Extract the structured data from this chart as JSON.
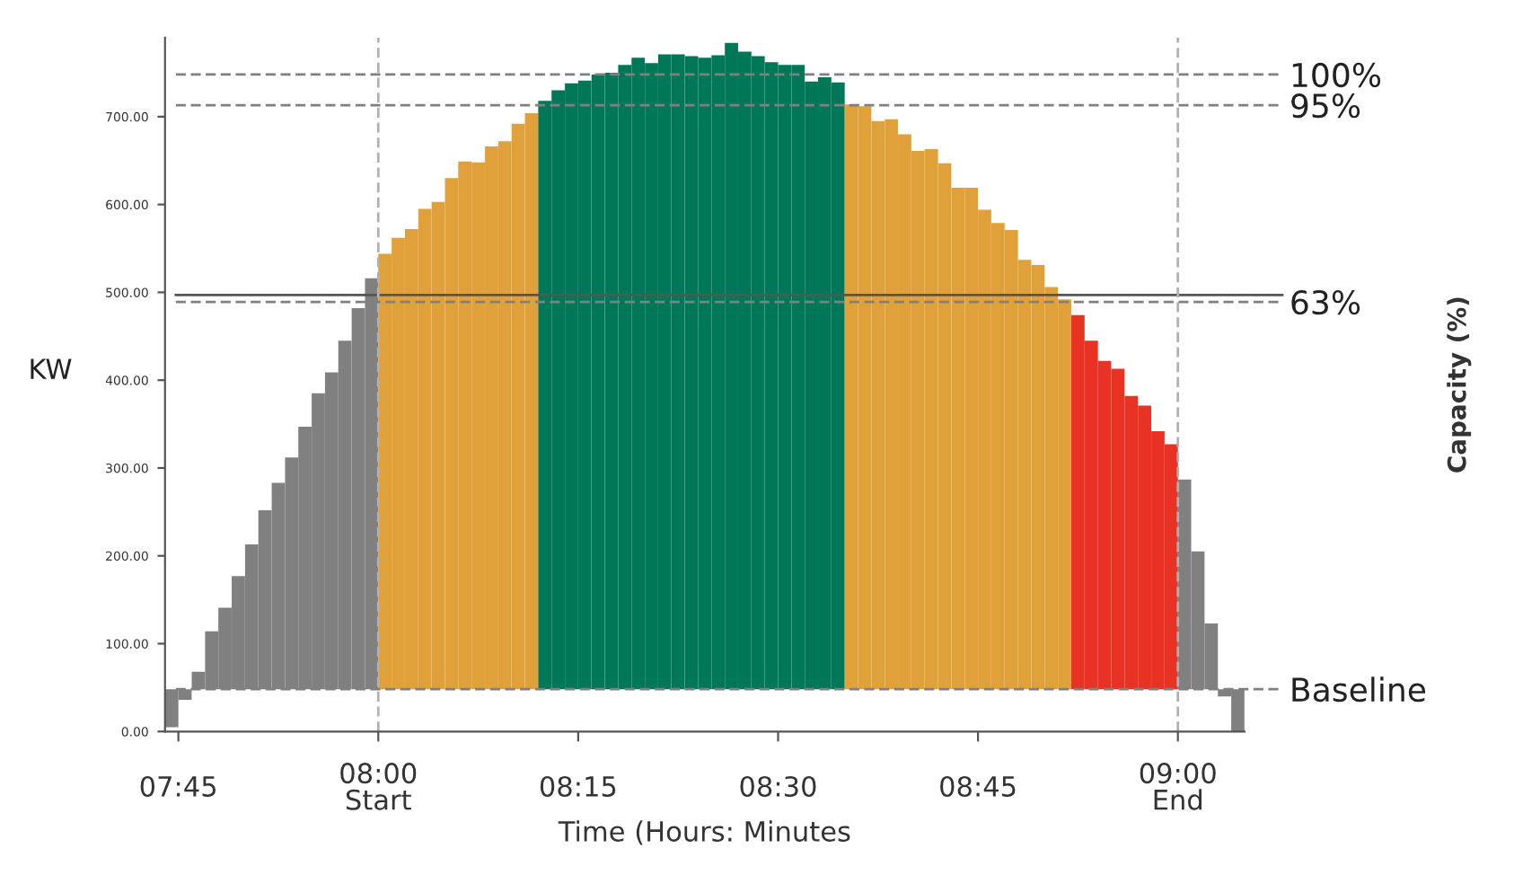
{
  "chart_data": {
    "type": "bar",
    "xlabel": "Time (Hours: Minutes",
    "ylabel": "KW",
    "y2label": "Capacity (%)",
    "x": [
      7.7417,
      7.7583,
      7.775,
      7.7917,
      7.8083,
      7.825,
      7.8417,
      7.8583,
      7.875,
      7.8917,
      7.9083,
      7.925,
      7.9417,
      7.9583,
      7.975,
      7.9917,
      8.0083,
      8.025,
      8.0417,
      8.0583,
      8.075,
      8.0917,
      8.1083,
      8.125,
      8.1417,
      8.1583,
      8.175,
      8.1917,
      8.2083,
      8.225,
      8.2417,
      8.2583,
      8.275,
      8.2917,
      8.3083,
      8.325,
      8.3417,
      8.3583,
      8.375,
      8.3917,
      8.4083,
      8.425,
      8.4417,
      8.4583,
      8.475,
      8.4917,
      8.5083,
      8.525,
      8.5417,
      8.5583,
      8.575,
      8.5917,
      8.6083,
      8.625,
      8.6417,
      8.6583,
      8.675,
      8.6917,
      8.7083,
      8.725,
      8.7417,
      8.7583,
      8.775,
      8.7917,
      8.8083,
      8.825,
      8.8417,
      8.8583,
      8.875,
      8.8917,
      8.9083,
      8.925,
      8.9417,
      8.9583,
      8.975,
      8.9917,
      9.0083,
      9.025,
      9.0417,
      9.0583,
      9.075
    ],
    "values": [
      -43,
      -12,
      20,
      66,
      93,
      129,
      165,
      204,
      235,
      264,
      299,
      337,
      361,
      397,
      434,
      468,
      496,
      514,
      524,
      547,
      555,
      582,
      601,
      600,
      618,
      624,
      644,
      656,
      670,
      682,
      690,
      693,
      700,
      702,
      711,
      719,
      713,
      723,
      723,
      721,
      719,
      722,
      736,
      726,
      721,
      714,
      711,
      711,
      692,
      697,
      691,
      666,
      664,
      647,
      649,
      632,
      613,
      615,
      599,
      571,
      571,
      546,
      531,
      523,
      489,
      483,
      458,
      444,
      426,
      397,
      374,
      365,
      334,
      323,
      294,
      279,
      239,
      157,
      75,
      -8,
      -48
    ],
    "base": [
      48,
      48,
      48,
      48,
      48,
      48,
      48,
      48,
      48,
      48,
      48,
      48,
      48,
      48,
      48,
      48,
      48,
      48,
      48,
      48,
      48,
      48,
      48,
      48,
      48,
      48,
      48,
      48,
      48,
      48,
      48,
      48,
      48,
      48,
      48,
      48,
      48,
      48,
      48,
      48,
      48,
      48,
      48,
      48,
      48,
      48,
      48,
      48,
      48,
      48,
      48,
      48,
      48,
      48,
      48,
      48,
      48,
      48,
      48,
      48,
      48,
      48,
      48,
      48,
      48,
      48,
      48,
      48,
      48,
      48,
      48,
      48,
      48,
      48,
      48,
      48,
      48,
      48,
      48,
      48,
      48
    ],
    "colors": [
      "#808080",
      "#808080",
      "#808080",
      "#808080",
      "#808080",
      "#808080",
      "#808080",
      "#808080",
      "#808080",
      "#808080",
      "#808080",
      "#808080",
      "#808080",
      "#808080",
      "#808080",
      "#808080",
      "#e0a03a",
      "#e0a03a",
      "#e0a03a",
      "#e0a03a",
      "#e0a03a",
      "#e0a03a",
      "#e0a03a",
      "#e0a03a",
      "#e0a03a",
      "#e0a03a",
      "#e0a03a",
      "#e0a03a",
      "#007858",
      "#007858",
      "#007858",
      "#007858",
      "#007858",
      "#007858",
      "#007858",
      "#007858",
      "#007858",
      "#007858",
      "#007858",
      "#007858",
      "#007858",
      "#007858",
      "#007858",
      "#007858",
      "#007858",
      "#007858",
      "#007858",
      "#007858",
      "#007858",
      "#007858",
      "#007858",
      "#e0a03a",
      "#e0a03a",
      "#e0a03a",
      "#e0a03a",
      "#e0a03a",
      "#e0a03a",
      "#e0a03a",
      "#e0a03a",
      "#e0a03a",
      "#e0a03a",
      "#e0a03a",
      "#e0a03a",
      "#e0a03a",
      "#e0a03a",
      "#e0a03a",
      "#e0a03a",
      "#e0a03a",
      "#e83224",
      "#e83224",
      "#e83224",
      "#e83224",
      "#e83224",
      "#e83224",
      "#e83224",
      "#e83224",
      "#808080",
      "#808080",
      "#808080",
      "#808080",
      "#808080"
    ],
    "xlim": [
      7.7333,
      9.0833
    ],
    "xticks": [
      {
        "value": 7.75,
        "label": "07:45"
      },
      {
        "value": 8,
        "label": "08:00\nStart"
      },
      {
        "value": 8.25,
        "label": "08:15"
      },
      {
        "value": 8.5,
        "label": "08:30"
      },
      {
        "value": 8.75,
        "label": "08:45"
      },
      {
        "value": 9,
        "label": "09:00\nEnd"
      }
    ],
    "ylim": [
      0,
      790
    ],
    "yticks": [
      {
        "value": 0,
        "label": "0.00"
      },
      {
        "value": 100,
        "label": "100.00"
      },
      {
        "value": 200,
        "label": "200.00"
      },
      {
        "value": 300,
        "label": "300.00"
      },
      {
        "value": 400,
        "label": "400.00"
      },
      {
        "value": 500,
        "label": "500.00"
      },
      {
        "value": 600,
        "label": "600.00"
      },
      {
        "value": 700,
        "label": "700.00"
      }
    ],
    "y2lim": [
      -6.9,
      106
    ],
    "y2ticks": [
      {
        "value": 100,
        "label": "100%"
      },
      {
        "value": 95,
        "label": "95%"
      },
      {
        "value": 63,
        "label": "63%"
      },
      {
        "value": 0,
        "label": "Baseline"
      }
    ],
    "ref_lines": [
      {
        "axis": "y2",
        "value": 100,
        "color": "#808080",
        "line_style": "dashed"
      },
      {
        "axis": "y2",
        "value": 95,
        "color": "#808080",
        "line_style": "dashed"
      },
      {
        "axis": "y",
        "value": 497,
        "color": "#555555",
        "line_style": "solid"
      },
      {
        "axis": "y2",
        "value": 63,
        "color": "#808080",
        "line_style": "dashed"
      },
      {
        "axis": "y2",
        "value": 0,
        "color": "#808080",
        "line_style": "dashed"
      },
      {
        "axis": "x",
        "value": 8,
        "color": "#b0b0b0",
        "line_style": "dashed"
      },
      {
        "axis": "x",
        "value": 9,
        "color": "#b0b0b0",
        "line_style": "dashed"
      }
    ],
    "grid": false,
    "legend": false
  }
}
